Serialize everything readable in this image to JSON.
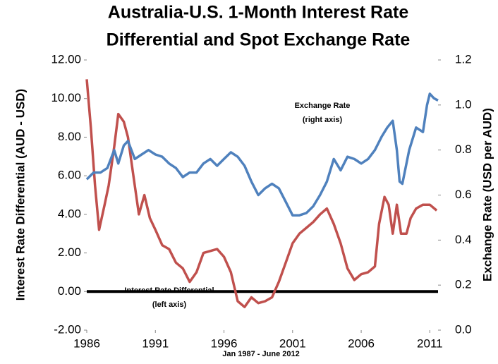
{
  "chart_data": {
    "type": "line",
    "title": [
      "Australia-U.S. 1-Month Interest Rate",
      "Differential and Spot Exchange Rate"
    ],
    "xlabel": "Jan 1987 - June 2012",
    "ylabel": "Interest Rate Differential (AUD - USD)",
    "y2label": "Exchange Rate (USD per AUD)",
    "annotations": [
      {
        "lines": [
          "Exchange Rate",
          "(right axis)"
        ],
        "series": 1
      },
      {
        "lines": [
          "Interest Rate Differential",
          "(left axis)"
        ],
        "series": 0
      }
    ],
    "xlim": [
      1986,
      2011.6
    ],
    "xticks": [
      1986,
      1991,
      1996,
      2001,
      2006,
      2011
    ],
    "ylim": [
      -2,
      12
    ],
    "yticks": [
      {
        "value": -2,
        "label": "-2.00"
      },
      {
        "value": 0,
        "label": "0.00"
      },
      {
        "value": 2,
        "label": "2.00"
      },
      {
        "value": 4,
        "label": "4.00"
      },
      {
        "value": 6,
        "label": "6.00"
      },
      {
        "value": 8,
        "label": "8.00"
      },
      {
        "value": 10,
        "label": "10.00"
      },
      {
        "value": 12,
        "label": "12.00"
      }
    ],
    "y2lim": [
      0,
      1.2
    ],
    "y2ticks": [
      {
        "value": 0,
        "label": "0.0"
      },
      0.2,
      0.4,
      0.6,
      0.8,
      {
        "value": 1,
        "label": "1.0"
      },
      1.2
    ],
    "reference_line": 0,
    "series": [
      {
        "name": "Interest Rate Differential",
        "color": "#c0504d",
        "axis": "y",
        "x": [
          1986.0,
          1986.3,
          1986.6,
          1986.9,
          1987.3,
          1987.6,
          1988.0,
          1988.3,
          1988.7,
          1989.0,
          1989.4,
          1989.8,
          1990.2,
          1990.6,
          1991.0,
          1991.5,
          1992.0,
          1992.5,
          1993.0,
          1993.5,
          1994.0,
          1994.5,
          1995.0,
          1995.5,
          1996.0,
          1996.5,
          1997.0,
          1997.5,
          1998.0,
          1998.5,
          1999.0,
          1999.5,
          2000.0,
          2000.5,
          2001.0,
          2001.5,
          2002.0,
          2002.5,
          2003.0,
          2003.5,
          2004.0,
          2004.5,
          2005.0,
          2005.5,
          2006.0,
          2006.5,
          2007.0,
          2007.3,
          2007.7,
          2008.0,
          2008.3,
          2008.6,
          2008.9,
          2009.3,
          2009.6,
          2010.0,
          2010.5,
          2011.0,
          2011.5
        ],
        "values": [
          11.0,
          8.5,
          5.5,
          3.2,
          4.5,
          5.5,
          7.5,
          9.2,
          8.8,
          8.0,
          6.0,
          4.0,
          5.0,
          3.8,
          3.2,
          2.4,
          2.2,
          1.5,
          1.2,
          0.5,
          1.0,
          2.0,
          2.1,
          2.2,
          1.8,
          1.0,
          -0.5,
          -0.8,
          -0.3,
          -0.6,
          -0.5,
          -0.3,
          0.5,
          1.5,
          2.5,
          3.0,
          3.3,
          3.6,
          4.0,
          4.3,
          3.5,
          2.5,
          1.2,
          0.6,
          0.9,
          1.0,
          1.3,
          3.5,
          4.9,
          4.5,
          3.0,
          4.5,
          3.0,
          3.0,
          3.8,
          4.3,
          4.5,
          4.5,
          4.2
        ]
      },
      {
        "name": "Exchange Rate",
        "color": "#4f81bd",
        "axis": "y2",
        "x": [
          1986.0,
          1986.5,
          1987.0,
          1987.5,
          1988.0,
          1988.3,
          1988.7,
          1989.0,
          1989.5,
          1990.0,
          1990.5,
          1991.0,
          1991.5,
          1992.0,
          1992.5,
          1993.0,
          1993.5,
          1994.0,
          1994.5,
          1995.0,
          1995.5,
          1996.0,
          1996.5,
          1997.0,
          1997.5,
          1998.0,
          1998.5,
          1999.0,
          1999.5,
          2000.0,
          2000.5,
          2001.0,
          2001.5,
          2002.0,
          2002.5,
          2003.0,
          2003.5,
          2004.0,
          2004.5,
          2005.0,
          2005.5,
          2006.0,
          2006.5,
          2007.0,
          2007.5,
          2007.9,
          2008.3,
          2008.6,
          2008.8,
          2009.0,
          2009.5,
          2010.0,
          2010.5,
          2010.8,
          2011.0,
          2011.3,
          2011.6
        ],
        "values": [
          0.67,
          0.7,
          0.7,
          0.72,
          0.8,
          0.74,
          0.82,
          0.84,
          0.76,
          0.78,
          0.8,
          0.78,
          0.77,
          0.74,
          0.72,
          0.68,
          0.7,
          0.7,
          0.74,
          0.76,
          0.73,
          0.76,
          0.79,
          0.77,
          0.73,
          0.66,
          0.6,
          0.63,
          0.65,
          0.63,
          0.57,
          0.51,
          0.51,
          0.52,
          0.55,
          0.6,
          0.66,
          0.76,
          0.71,
          0.77,
          0.76,
          0.74,
          0.76,
          0.8,
          0.86,
          0.9,
          0.93,
          0.8,
          0.66,
          0.65,
          0.8,
          0.9,
          0.88,
          1.0,
          1.05,
          1.03,
          1.02
        ]
      }
    ]
  }
}
